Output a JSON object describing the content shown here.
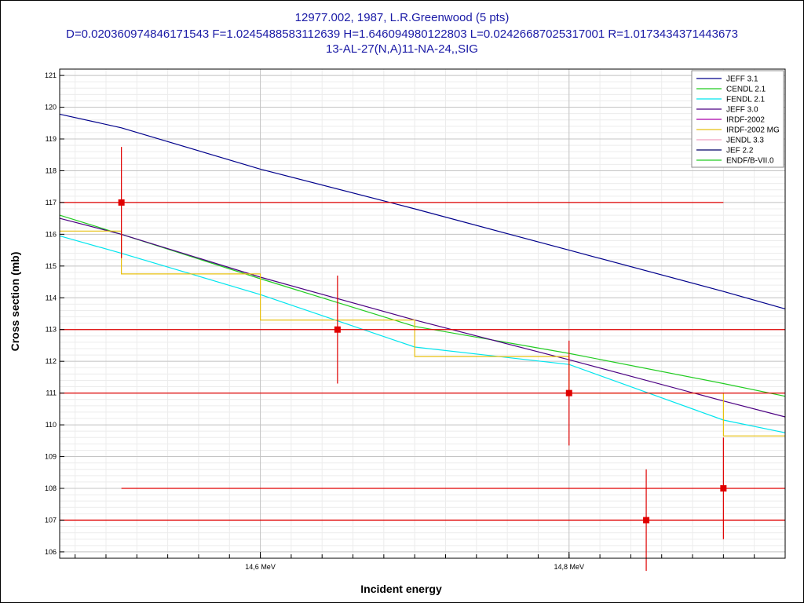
{
  "chart_data": {
    "type": "line",
    "title": "12977.002, 1987, L.R.Greenwood (5 pts)",
    "subtitle": "D=0.020360974846171543 F=1.0245488583112639 H=1.646094980122803 L=0.02426687025317001 R=1.0173434371443673",
    "reaction": "13-AL-27(N,A)11-NA-24,,SIG",
    "xlabel": "Incident energy",
    "ylabel": "Cross section (mb)",
    "xlim": [
      14.47,
      14.94
    ],
    "ylim": [
      105.8,
      121.2
    ],
    "x_tick_labels": [
      {
        "x": 14.6,
        "label": "14,6 MeV"
      },
      {
        "x": 14.8,
        "label": "14,8 MeV"
      }
    ],
    "y_ticks": [
      106,
      107,
      108,
      109,
      110,
      111,
      112,
      113,
      114,
      115,
      116,
      117,
      118,
      119,
      120,
      121
    ],
    "grid": true,
    "legend_position": "top-right",
    "series": [
      {
        "name": "JEFF 3.1",
        "color": "#00008b",
        "step": false,
        "points": [
          [
            14.47,
            119.78
          ],
          [
            14.51,
            119.35
          ],
          [
            14.6,
            118.05
          ],
          [
            14.7,
            116.8
          ],
          [
            14.8,
            115.5
          ],
          [
            14.9,
            114.2
          ],
          [
            14.94,
            113.65
          ]
        ]
      },
      {
        "name": "CENDL 2.1",
        "color": "#22cc22",
        "step": false,
        "points": [
          [
            14.47,
            116.6
          ],
          [
            14.51,
            116.0
          ],
          [
            14.6,
            114.6
          ],
          [
            14.7,
            113.1
          ],
          [
            14.8,
            112.25
          ],
          [
            14.9,
            111.3
          ],
          [
            14.94,
            110.9
          ]
        ]
      },
      {
        "name": "FENDL 2.1",
        "color": "#00e5ee",
        "step": false,
        "points": [
          [
            14.47,
            115.95
          ],
          [
            14.51,
            115.4
          ],
          [
            14.6,
            114.1
          ],
          [
            14.7,
            112.45
          ],
          [
            14.8,
            111.9
          ],
          [
            14.9,
            110.15
          ],
          [
            14.94,
            109.75
          ]
        ]
      },
      {
        "name": "JEFF 3.0",
        "color": "#4b0082",
        "step": false,
        "points": [
          [
            14.47,
            116.5
          ],
          [
            14.51,
            116.0
          ],
          [
            14.6,
            114.65
          ],
          [
            14.7,
            113.3
          ],
          [
            14.8,
            112.05
          ],
          [
            14.9,
            110.75
          ],
          [
            14.94,
            110.25
          ]
        ]
      },
      {
        "name": "IRDF-2002",
        "color": "#aa00aa",
        "step": false,
        "points": []
      },
      {
        "name": "IRDF-2002 MG",
        "color": "#e8c010",
        "step": true,
        "points": [
          [
            14.47,
            116.1
          ],
          [
            14.51,
            116.1
          ],
          [
            14.51,
            114.75
          ],
          [
            14.6,
            114.75
          ],
          [
            14.6,
            113.3
          ],
          [
            14.7,
            113.3
          ],
          [
            14.7,
            112.15
          ],
          [
            14.8,
            112.15
          ],
          [
            14.8,
            111.0
          ],
          [
            14.9,
            111.0
          ],
          [
            14.9,
            109.65
          ],
          [
            14.94,
            109.65
          ]
        ]
      },
      {
        "name": "JENDL 3.3",
        "color": "#f0a0c0",
        "step": false,
        "points": []
      },
      {
        "name": "JEF 2.2",
        "color": "#000066",
        "step": false,
        "points": []
      },
      {
        "name": "ENDF/B-VII.0",
        "color": "#22cc22",
        "step": false,
        "points": []
      }
    ],
    "measurements": {
      "color": "#e00000",
      "points": [
        {
          "x": 14.51,
          "y": 117.0,
          "yerr": 1.75,
          "xspan": [
            14.47,
            14.9
          ]
        },
        {
          "x": 14.65,
          "y": 113.0,
          "yerr": 1.7,
          "xspan": [
            14.47,
            14.94
          ]
        },
        {
          "x": 14.8,
          "y": 111.0,
          "yerr": 1.65,
          "xspan": [
            14.47,
            14.94
          ]
        },
        {
          "x": 14.85,
          "y": 107.0,
          "yerr": 1.6,
          "xspan": [
            14.47,
            14.94
          ]
        },
        {
          "x": 14.9,
          "y": 108.0,
          "yerr": 1.6,
          "xspan": [
            14.51,
            14.94
          ]
        }
      ]
    }
  }
}
